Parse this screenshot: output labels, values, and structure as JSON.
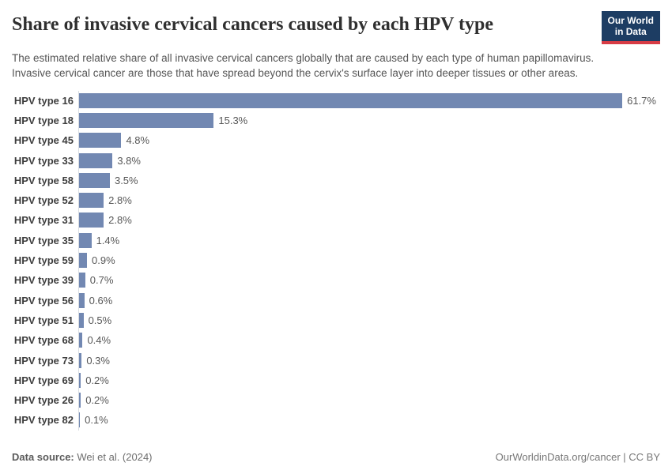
{
  "header": {
    "title": "Share of invasive cervical cancers caused by each HPV type",
    "subtitle": "The estimated relative share of all invasive cervical cancers globally that are caused by each type of human papillomavirus. Invasive cervical cancer are those that have spread beyond the cervix's surface layer into deeper tissues or other areas.",
    "logo": {
      "line1": "Our World",
      "line2": "in Data"
    }
  },
  "colors": {
    "bar": "#7288b2",
    "axis": "#d9dde2",
    "logo_bg": "#1d3d63",
    "logo_accent": "#d73c45"
  },
  "chart_data": {
    "type": "bar",
    "orientation": "horizontal",
    "title": "Share of invasive cervical cancers caused by each HPV type",
    "categories": [
      "HPV type 16",
      "HPV type 18",
      "HPV type 45",
      "HPV type 33",
      "HPV type 58",
      "HPV type 52",
      "HPV type 31",
      "HPV type 35",
      "HPV type 59",
      "HPV type 39",
      "HPV type 56",
      "HPV type 51",
      "HPV type 68",
      "HPV type 73",
      "HPV type 69",
      "HPV type 26",
      "HPV type 82"
    ],
    "values": [
      61.7,
      15.3,
      4.8,
      3.8,
      3.5,
      2.8,
      2.8,
      1.4,
      0.9,
      0.7,
      0.6,
      0.5,
      0.4,
      0.3,
      0.2,
      0.2,
      0.1
    ],
    "value_labels": [
      "61.7%",
      "15.3%",
      "4.8%",
      "3.8%",
      "3.5%",
      "2.8%",
      "2.8%",
      "1.4%",
      "0.9%",
      "0.7%",
      "0.6%",
      "0.5%",
      "0.4%",
      "0.3%",
      "0.2%",
      "0.2%",
      "0.1%"
    ],
    "unit": "%",
    "xlim": [
      0,
      66
    ],
    "grid": false,
    "legend": false
  },
  "footer": {
    "source_label": "Data source:",
    "source_value": "Wei et al. (2024)",
    "link_text": "OurWorldinData.org/cancer | CC BY"
  }
}
